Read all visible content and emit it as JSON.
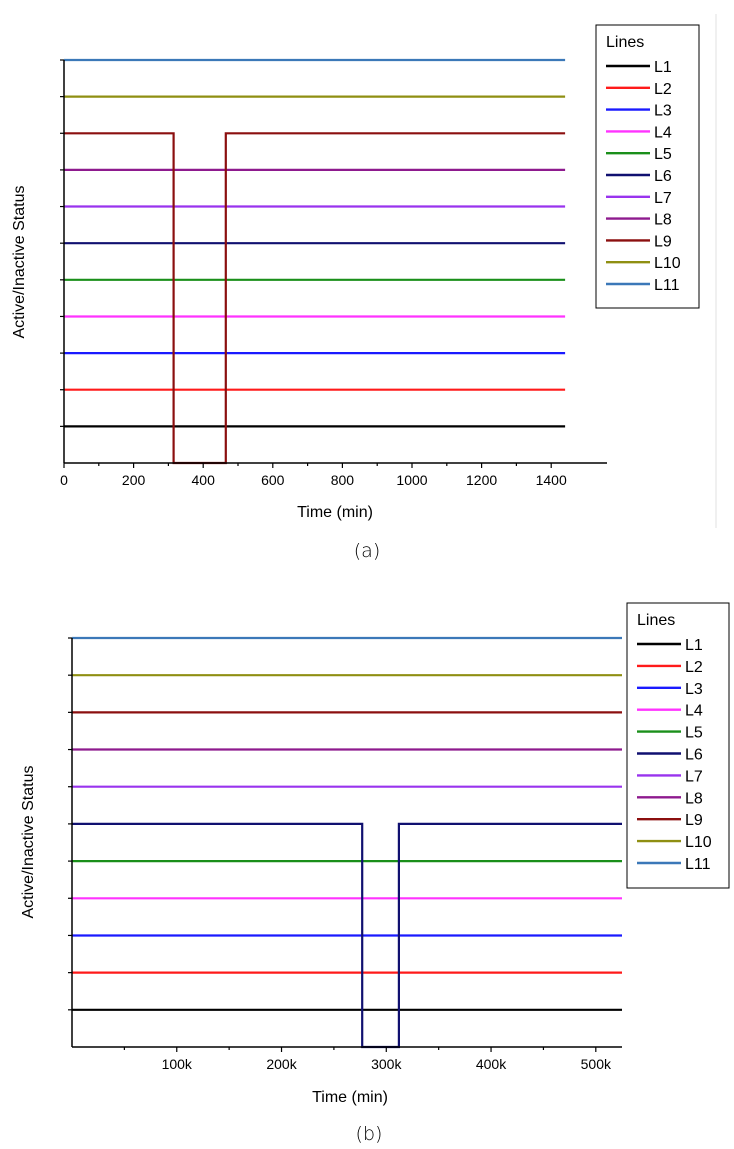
{
  "chart_data": [
    {
      "type": "line",
      "caption": "(a)",
      "xlabel": "Time (min)",
      "ylabel": "Active/Inactive Status",
      "xlim": [
        0,
        1500
      ],
      "xticks": [
        0,
        200,
        400,
        600,
        800,
        1000,
        1200,
        1400
      ],
      "xtick_labels": [
        "0",
        "200",
        "400",
        "600",
        "800",
        "1000",
        "1200",
        "1400"
      ],
      "legend_title": "Lines",
      "series": [
        {
          "name": "L1",
          "color": "#000000",
          "x": [
            0,
            1440
          ],
          "y": [
            1,
            1
          ]
        },
        {
          "name": "L2",
          "color": "#ff1a1a",
          "x": [
            0,
            1440
          ],
          "y": [
            1,
            1
          ]
        },
        {
          "name": "L3",
          "color": "#1a1aff",
          "x": [
            0,
            1440
          ],
          "y": [
            1,
            1
          ]
        },
        {
          "name": "L4",
          "color": "#ff33ff",
          "x": [
            0,
            1440
          ],
          "y": [
            1,
            1
          ]
        },
        {
          "name": "L5",
          "color": "#1a8f1a",
          "x": [
            0,
            1440
          ],
          "y": [
            1,
            1
          ]
        },
        {
          "name": "L6",
          "color": "#101070",
          "x": [
            0,
            1440
          ],
          "y": [
            1,
            1
          ]
        },
        {
          "name": "L7",
          "color": "#9933ee",
          "x": [
            0,
            1440
          ],
          "y": [
            1,
            1
          ]
        },
        {
          "name": "L8",
          "color": "#8e1a8e",
          "x": [
            0,
            1440
          ],
          "y": [
            1,
            1
          ]
        },
        {
          "name": "L9",
          "color": "#8b0f0f",
          "x": [
            0,
            315,
            315,
            465,
            465,
            1440
          ],
          "y": [
            1,
            1,
            0,
            0,
            1,
            1
          ]
        },
        {
          "name": "L10",
          "color": "#8f8f12",
          "x": [
            0,
            1440
          ],
          "y": [
            1,
            1
          ]
        },
        {
          "name": "L11",
          "color": "#3b78b8",
          "x": [
            0,
            1440
          ],
          "y": [
            1,
            1
          ]
        }
      ]
    },
    {
      "type": "line",
      "caption": "(b)",
      "xlabel": "Time (min)",
      "ylabel": "Active/Inactive Status",
      "xlim": [
        0,
        525000
      ],
      "xticks": [
        100000,
        200000,
        300000,
        400000,
        500000
      ],
      "xtick_labels": [
        "100k",
        "200k",
        "300k",
        "400k",
        "500k"
      ],
      "minor_xticks": [
        50000,
        150000,
        250000,
        350000,
        450000
      ],
      "legend_title": "Lines",
      "series": [
        {
          "name": "L1",
          "color": "#000000",
          "x": [
            0,
            525000
          ],
          "y": [
            1,
            1
          ]
        },
        {
          "name": "L2",
          "color": "#ff1a1a",
          "x": [
            0,
            525000
          ],
          "y": [
            1,
            1
          ]
        },
        {
          "name": "L3",
          "color": "#1a1aff",
          "x": [
            0,
            525000
          ],
          "y": [
            1,
            1
          ]
        },
        {
          "name": "L4",
          "color": "#ff33ff",
          "x": [
            0,
            525000
          ],
          "y": [
            1,
            1
          ]
        },
        {
          "name": "L5",
          "color": "#1a8f1a",
          "x": [
            0,
            525000
          ],
          "y": [
            1,
            1
          ]
        },
        {
          "name": "L6",
          "color": "#101070",
          "x": [
            0,
            277000,
            277000,
            312000,
            312000,
            525000
          ],
          "y": [
            1,
            1,
            0,
            0,
            1,
            1
          ]
        },
        {
          "name": "L7",
          "color": "#9933ee",
          "x": [
            0,
            525000
          ],
          "y": [
            1,
            1
          ]
        },
        {
          "name": "L8",
          "color": "#8e1a8e",
          "x": [
            0,
            525000
          ],
          "y": [
            1,
            1
          ]
        },
        {
          "name": "L9",
          "color": "#8b0f0f",
          "x": [
            0,
            525000
          ],
          "y": [
            1,
            1
          ]
        },
        {
          "name": "L10",
          "color": "#8f8f12",
          "x": [
            0,
            525000
          ],
          "y": [
            1,
            1
          ]
        },
        {
          "name": "L11",
          "color": "#3b78b8",
          "x": [
            0,
            525000
          ],
          "y": [
            1,
            1
          ]
        }
      ]
    }
  ]
}
